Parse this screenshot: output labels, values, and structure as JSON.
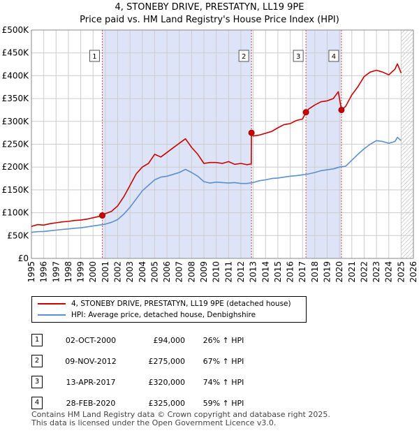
{
  "chart_data": {
    "type": "line",
    "title": "4, STONEBY DRIVE, PRESTATYN, LL19 9PE",
    "subtitle": "Price paid vs. HM Land Registry's House Price Index (HPI)",
    "xlim": [
      1995,
      2026
    ],
    "ylim": [
      0,
      500000
    ],
    "x_ticks": [
      "1995",
      "1996",
      "1997",
      "1998",
      "1999",
      "2000",
      "2001",
      "2002",
      "2003",
      "2004",
      "2005",
      "2006",
      "2007",
      "2008",
      "2009",
      "2010",
      "2011",
      "2012",
      "2013",
      "2014",
      "2015",
      "2016",
      "2017",
      "2018",
      "2019",
      "2020",
      "2021",
      "2022",
      "2023",
      "2024",
      "2025",
      "2026"
    ],
    "y_ticks": [
      {
        "value": 0,
        "label": "£0"
      },
      {
        "value": 50000,
        "label": "£50K"
      },
      {
        "value": 100000,
        "label": "£100K"
      },
      {
        "value": 150000,
        "label": "£150K"
      },
      {
        "value": 200000,
        "label": "£200K"
      },
      {
        "value": 250000,
        "label": "£250K"
      },
      {
        "value": 300000,
        "label": "£300K"
      },
      {
        "value": 350000,
        "label": "£350K"
      },
      {
        "value": 400000,
        "label": "£400K"
      },
      {
        "value": 450000,
        "label": "£450K"
      },
      {
        "value": 500000,
        "label": "£500K"
      }
    ],
    "shaded_periods": [
      [
        2000.75,
        2012.86
      ],
      [
        2017.28,
        2020.16
      ]
    ],
    "future_start": 2025.0,
    "series": [
      {
        "name": "4, STONEBY DRIVE, PRESTATYN, LL19 9PE (detached house)",
        "color": "#cc0000",
        "x": [
          1995.0,
          1995.5,
          1996.0,
          1996.5,
          1997.0,
          1997.5,
          1998.0,
          1998.5,
          1999.0,
          1999.5,
          2000.0,
          2000.5,
          2000.75,
          2001.0,
          2001.5,
          2002.0,
          2002.5,
          2003.0,
          2003.5,
          2004.0,
          2004.5,
          2005.0,
          2005.5,
          2006.0,
          2006.5,
          2007.0,
          2007.5,
          2008.0,
          2008.5,
          2009.0,
          2009.5,
          2010.0,
          2010.5,
          2011.0,
          2011.5,
          2012.0,
          2012.5,
          2012.84,
          2012.86,
          2013.0,
          2013.5,
          2014.0,
          2014.5,
          2015.0,
          2015.5,
          2016.0,
          2016.5,
          2017.0,
          2017.28,
          2017.5,
          2018.0,
          2018.5,
          2019.0,
          2019.5,
          2019.9,
          2020.16,
          2020.5,
          2021.0,
          2021.5,
          2022.0,
          2022.5,
          2023.0,
          2023.5,
          2024.0,
          2024.5,
          2024.7,
          2025.0
        ],
        "values": [
          70000,
          74000,
          73000,
          76000,
          78000,
          80000,
          81000,
          83000,
          84000,
          86000,
          89000,
          92000,
          94000,
          98000,
          103000,
          115000,
          135000,
          160000,
          185000,
          200000,
          208000,
          228000,
          222000,
          232000,
          242000,
          252000,
          262000,
          243000,
          228000,
          208000,
          210000,
          210000,
          208000,
          212000,
          206000,
          208000,
          205000,
          207000,
          275000,
          268000,
          270000,
          274000,
          278000,
          286000,
          293000,
          295000,
          302000,
          305000,
          320000,
          327000,
          336000,
          343000,
          345000,
          350000,
          365000,
          325000,
          333000,
          358000,
          376000,
          398000,
          408000,
          412000,
          408000,
          402000,
          414000,
          426000,
          406000
        ]
      },
      {
        "name": "HPI: Average price, detached house, Denbighshire",
        "color": "#5b8fd0",
        "x": [
          1995.0,
          1995.5,
          1996.0,
          1996.5,
          1997.0,
          1997.5,
          1998.0,
          1998.5,
          1999.0,
          1999.5,
          2000.0,
          2000.5,
          2001.0,
          2001.5,
          2002.0,
          2002.5,
          2003.0,
          2003.5,
          2004.0,
          2004.5,
          2005.0,
          2005.5,
          2006.0,
          2006.5,
          2007.0,
          2007.5,
          2008.0,
          2008.5,
          2009.0,
          2009.5,
          2010.0,
          2010.5,
          2011.0,
          2011.5,
          2012.0,
          2012.5,
          2013.0,
          2013.5,
          2014.0,
          2014.5,
          2015.0,
          2015.5,
          2016.0,
          2016.5,
          2017.0,
          2017.5,
          2018.0,
          2018.5,
          2019.0,
          2019.5,
          2020.0,
          2020.5,
          2021.0,
          2021.5,
          2022.0,
          2022.5,
          2023.0,
          2023.5,
          2024.0,
          2024.5,
          2024.7,
          2025.0
        ],
        "values": [
          57000,
          58500,
          59000,
          60500,
          62000,
          63500,
          64500,
          66000,
          67000,
          69000,
          71000,
          73000,
          75000,
          79000,
          85000,
          97000,
          112000,
          130000,
          148000,
          160000,
          172000,
          178000,
          180000,
          184000,
          188000,
          195000,
          188000,
          180000,
          168000,
          165000,
          167000,
          166000,
          165000,
          166000,
          164000,
          164000,
          166000,
          170000,
          172000,
          175000,
          176000,
          178000,
          180000,
          181000,
          183000,
          185000,
          188000,
          192000,
          194000,
          196000,
          200000,
          202000,
          215000,
          228000,
          240000,
          250000,
          258000,
          256000,
          252000,
          256000,
          265000,
          258000
        ]
      }
    ],
    "sales": [
      {
        "label": "1",
        "x": 2000.75,
        "value": 94000
      },
      {
        "label": "2",
        "x": 2012.86,
        "value": 275000
      },
      {
        "label": "3",
        "x": 2017.28,
        "value": 320000
      },
      {
        "label": "4",
        "x": 2020.16,
        "value": 325000
      }
    ]
  },
  "legend": {
    "property": "4, STONEBY DRIVE, PRESTATYN, LL19 9PE (detached house)",
    "hpi": "HPI: Average price, detached house, Denbighshire"
  },
  "transactions": [
    {
      "num": "1",
      "date": "02-OCT-2000",
      "price": "£94,000",
      "hpi": "26% ↑ HPI"
    },
    {
      "num": "2",
      "date": "09-NOV-2012",
      "price": "£275,000",
      "hpi": "67% ↑ HPI"
    },
    {
      "num": "3",
      "date": "13-APR-2017",
      "price": "£320,000",
      "hpi": "74% ↑ HPI"
    },
    {
      "num": "4",
      "date": "28-FEB-2020",
      "price": "£325,000",
      "hpi": "59% ↑ HPI"
    }
  ],
  "footer": {
    "line1": "Contains HM Land Registry data © Crown copyright and database right 2025.",
    "line2": "This data is licensed under the Open Government Licence v3.0."
  },
  "colors": {
    "property": "#cc0000",
    "hpi": "#5b8fd0",
    "shade": "#dde4f7"
  }
}
